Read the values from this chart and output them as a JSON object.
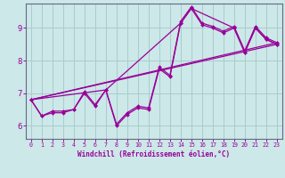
{
  "title": "",
  "xlabel": "Windchill (Refroidissement éolien,°C)",
  "bg_color": "#cce8e8",
  "grid_color": "#aacccc",
  "line_color": "#990099",
  "axis_color": "#666688",
  "xlim": [
    -0.5,
    23.5
  ],
  "ylim": [
    5.6,
    9.75
  ],
  "yticks": [
    6,
    7,
    8,
    9
  ],
  "ytick_labels": [
    "6",
    "7",
    "8",
    "9"
  ],
  "xticks": [
    0,
    1,
    2,
    3,
    4,
    5,
    6,
    7,
    8,
    9,
    10,
    11,
    12,
    13,
    14,
    15,
    16,
    17,
    18,
    19,
    20,
    21,
    22,
    23
  ],
  "lines": [
    {
      "x": [
        0,
        1,
        2,
        3,
        4,
        5,
        6,
        7,
        8,
        9,
        10,
        11,
        12,
        13,
        14,
        15,
        16,
        17,
        18,
        19,
        20,
        21,
        22,
        23
      ],
      "y": [
        6.8,
        6.3,
        6.4,
        6.4,
        6.5,
        7.0,
        6.6,
        7.1,
        6.0,
        6.35,
        6.55,
        6.5,
        7.75,
        7.5,
        9.15,
        9.6,
        9.1,
        9.0,
        8.85,
        9.0,
        8.25,
        9.0,
        8.65,
        8.5
      ]
    },
    {
      "x": [
        0,
        1,
        2,
        3,
        4,
        5,
        6,
        7,
        8,
        9,
        10,
        11,
        12,
        13,
        14,
        15,
        16,
        17,
        18,
        19,
        20,
        21,
        22,
        23
      ],
      "y": [
        6.8,
        6.3,
        6.45,
        6.45,
        6.5,
        7.05,
        6.65,
        7.1,
        6.05,
        6.4,
        6.6,
        6.55,
        7.8,
        7.55,
        9.2,
        9.65,
        9.15,
        9.05,
        8.9,
        9.05,
        8.3,
        9.05,
        8.7,
        8.55
      ]
    },
    {
      "x": [
        0,
        23
      ],
      "y": [
        6.8,
        8.5
      ]
    },
    {
      "x": [
        0,
        23
      ],
      "y": [
        6.8,
        8.55
      ]
    },
    {
      "x": [
        0,
        7,
        14,
        15,
        19,
        20,
        21,
        22,
        23
      ],
      "y": [
        6.8,
        7.1,
        9.15,
        9.6,
        9.0,
        8.25,
        9.0,
        8.65,
        8.5
      ]
    }
  ],
  "marker": "D",
  "markersize": 2.0,
  "linewidth": 0.9,
  "xlabel_fontsize": 5.5,
  "tick_fontsize_x": 4.8,
  "tick_fontsize_y": 6.5
}
